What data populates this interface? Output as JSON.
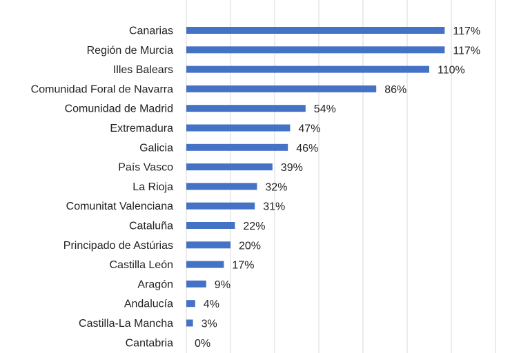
{
  "chart_data": {
    "type": "bar",
    "orientation": "horizontal",
    "categories": [
      "Canarias",
      "Región de Murcia",
      "Illes Balears",
      "Comunidad Foral de Navarra",
      "Comunidad de Madrid",
      "Extremadura",
      "Galicia",
      "País Vasco",
      "La Rioja",
      "Comunitat Valenciana",
      "Cataluña",
      "Principado de Astúrias",
      "Castilla León",
      "Aragón",
      "Andalucía",
      "Castilla-La Mancha",
      "Cantabria"
    ],
    "values": [
      117,
      117,
      110,
      86,
      54,
      47,
      46,
      39,
      32,
      31,
      22,
      20,
      17,
      9,
      4,
      3,
      0
    ],
    "value_labels": [
      "117%",
      "117%",
      "110%",
      "86%",
      "54%",
      "47%",
      "46%",
      "39%",
      "32%",
      "31%",
      "22%",
      "20%",
      "17%",
      "9%",
      "4%",
      "3%",
      "0%"
    ],
    "xlim": [
      0,
      140
    ],
    "grid": true,
    "bar_color": "#4472c4",
    "grid_color": "#d9d9d9"
  }
}
